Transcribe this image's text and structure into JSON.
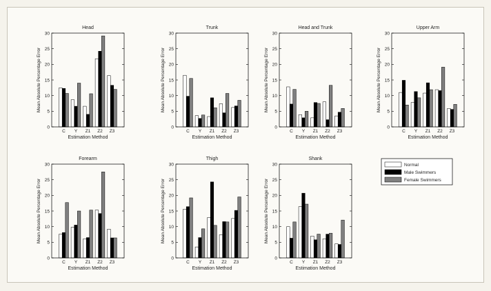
{
  "legend": [
    {
      "label": "Normal",
      "color": "#ffffff"
    },
    {
      "label": "Male Swimmers",
      "color": "#000000"
    },
    {
      "label": "Female Swimmers",
      "color": "#808080"
    }
  ],
  "chart_data": [
    {
      "type": "bar",
      "title": "Head",
      "xlabel": "Estimation Method",
      "ylabel": "Mean Absolute Percentage Error",
      "ylim": [
        0,
        30
      ],
      "categories": [
        "C",
        "Y",
        "Z1",
        "Z2",
        "Z3"
      ],
      "series": [
        {
          "name": "Normal",
          "values": [
            12.5,
            8.7,
            6.6,
            21.8,
            16.4
          ]
        },
        {
          "name": "Male Swimmers",
          "values": [
            12.3,
            6.6,
            4.0,
            24.2,
            13.3
          ]
        },
        {
          "name": "Female Swimmers",
          "values": [
            10.7,
            14.0,
            10.6,
            29.1,
            12.0
          ]
        }
      ]
    },
    {
      "type": "bar",
      "title": "Trunk",
      "xlabel": "Estimation Method",
      "ylabel": "Mean Absolute Percentage Error",
      "ylim": [
        0,
        30
      ],
      "categories": [
        "C",
        "Y",
        "Z1",
        "Z2",
        "Z3"
      ],
      "series": [
        {
          "name": "Normal",
          "values": [
            16.5,
            3.6,
            3.3,
            7.4,
            6.2
          ]
        },
        {
          "name": "Male Swimmers",
          "values": [
            9.8,
            2.7,
            9.3,
            4.5,
            6.7
          ]
        },
        {
          "name": "Female Swimmers",
          "values": [
            15.5,
            3.8,
            6.1,
            10.7,
            8.5
          ]
        }
      ]
    },
    {
      "type": "bar",
      "title": "Head and Trunk",
      "xlabel": "Estimation Method",
      "ylabel": "Mean Absolute Percentage Error",
      "ylim": [
        0,
        30
      ],
      "categories": [
        "C",
        "Y",
        "Z1",
        "Z2",
        "Z3"
      ],
      "series": [
        {
          "name": "Normal",
          "values": [
            12.8,
            3.9,
            2.9,
            8.0,
            3.5
          ]
        },
        {
          "name": "Male Swimmers",
          "values": [
            7.3,
            2.9,
            7.8,
            2.3,
            4.7
          ]
        },
        {
          "name": "Female Swimmers",
          "values": [
            12.0,
            5.0,
            7.5,
            13.3,
            5.9
          ]
        }
      ]
    },
    {
      "type": "bar",
      "title": "Upper Arm",
      "xlabel": "Estimation Method",
      "ylabel": "Mean Absolute Percentage Error",
      "ylim": [
        0,
        30
      ],
      "categories": [
        "C",
        "Y",
        "Z1",
        "Z2",
        "Z3"
      ],
      "series": [
        {
          "name": "Normal",
          "values": [
            11.0,
            7.8,
            10.8,
            11.9,
            5.9
          ]
        },
        {
          "name": "Male Swimmers",
          "values": [
            14.9,
            11.3,
            14.1,
            11.6,
            5.6
          ]
        },
        {
          "name": "Female Swimmers",
          "values": [
            7.0,
            9.3,
            11.9,
            19.1,
            7.2
          ]
        }
      ]
    },
    {
      "type": "bar",
      "title": "Forearm",
      "xlabel": "Estimation Method",
      "ylabel": "Mean Absolute Percentage Error",
      "ylim": [
        0,
        30
      ],
      "categories": [
        "C",
        "Y",
        "Z1",
        "Z2",
        "Z3"
      ],
      "series": [
        {
          "name": "Normal",
          "values": [
            7.6,
            9.8,
            6.1,
            15.3,
            9.2
          ]
        },
        {
          "name": "Male Swimmers",
          "values": [
            8.1,
            10.5,
            6.5,
            14.2,
            6.4
          ]
        },
        {
          "name": "Female Swimmers",
          "values": [
            17.7,
            15.0,
            15.3,
            27.5,
            6.4
          ]
        }
      ]
    },
    {
      "type": "bar",
      "title": "Thigh",
      "xlabel": "Estimation Method",
      "ylabel": "Mean Absolute Percentage Error",
      "ylim": [
        0,
        30
      ],
      "categories": [
        "C",
        "Y",
        "Z1",
        "Z2",
        "Z3"
      ],
      "series": [
        {
          "name": "Normal",
          "values": [
            15.6,
            3.5,
            12.9,
            7.4,
            12.6
          ]
        },
        {
          "name": "Male Swimmers",
          "values": [
            16.4,
            6.5,
            24.3,
            11.6,
            15.2
          ]
        },
        {
          "name": "Female Swimmers",
          "values": [
            19.2,
            9.3,
            10.4,
            11.5,
            19.5
          ]
        }
      ]
    },
    {
      "type": "bar",
      "title": "Shank",
      "xlabel": "Estimation Method",
      "ylabel": "Mean Absolute Percentage Error",
      "ylim": [
        0,
        30
      ],
      "categories": [
        "C",
        "Y",
        "Z1",
        "Z2",
        "Z3"
      ],
      "series": [
        {
          "name": "Normal",
          "values": [
            10.0,
            16.4,
            7.0,
            6.1,
            4.5
          ]
        },
        {
          "name": "Male Swimmers",
          "values": [
            6.3,
            20.7,
            5.8,
            7.6,
            4.3
          ]
        },
        {
          "name": "Female Swimmers",
          "values": [
            11.5,
            17.2,
            7.6,
            7.9,
            12.1
          ]
        }
      ]
    }
  ],
  "axis": {
    "yticks": [
      0,
      5,
      10,
      15,
      20,
      25,
      30
    ]
  }
}
